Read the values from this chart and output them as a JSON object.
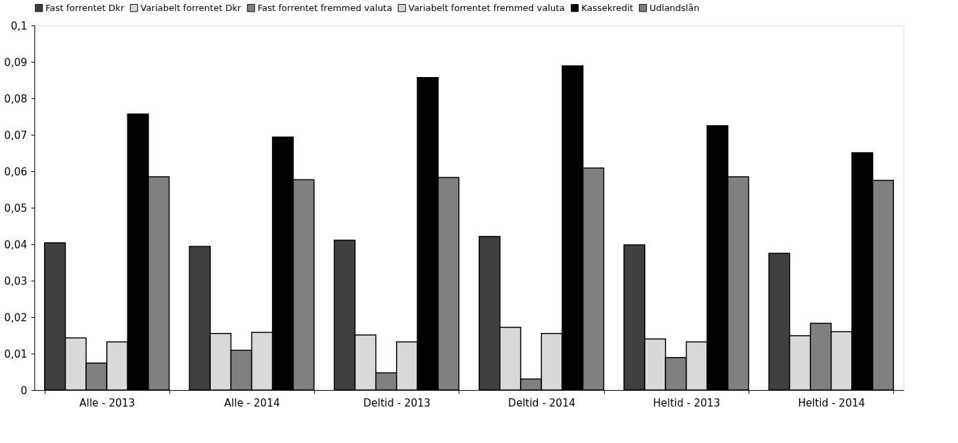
{
  "chart_data": {
    "type": "bar",
    "categories": [
      "Alle - 2013",
      "Alle - 2014",
      "Deltid - 2013",
      "Deltid - 2014",
      "Heltid - 2013",
      "Heltid - 2014"
    ],
    "series": [
      {
        "name": "Fast forrentet Dkr",
        "color": "#404040",
        "values": [
          0.0404,
          0.0394,
          0.0411,
          0.0421,
          0.0398,
          0.0375
        ]
      },
      {
        "name": "Variabelt forrentet Dkr",
        "color": "#d9d9d9",
        "values": [
          0.0143,
          0.0155,
          0.0151,
          0.0172,
          0.014,
          0.0149
        ]
      },
      {
        "name": "Fast forrentet fremmed valuta",
        "color": "#808080",
        "values": [
          0.0074,
          0.0109,
          0.0047,
          0.003,
          0.0089,
          0.0183
        ]
      },
      {
        "name": "Variabelt forrentet fremmed valuta",
        "color": "#d9d9d9",
        "values": [
          0.0132,
          0.0158,
          0.0132,
          0.0155,
          0.0132,
          0.016
        ]
      },
      {
        "name": "Kassekredit",
        "color": "#000000",
        "values": [
          0.0757,
          0.0694,
          0.0857,
          0.0889,
          0.0725,
          0.0651
        ]
      },
      {
        "name": "Udlandslån",
        "color": "#808080",
        "values": [
          0.0585,
          0.0577,
          0.0583,
          0.0609,
          0.0585,
          0.0575
        ]
      }
    ],
    "ylim": [
      0,
      0.1
    ],
    "yticks": [
      0,
      {
        "value": 0.01,
        "label": "0,01"
      },
      {
        "value": 0.02,
        "label": "0,02"
      },
      {
        "value": 0.03,
        "label": "0,03"
      },
      {
        "value": 0.04,
        "label": "0,04"
      },
      {
        "value": 0.05,
        "label": "0,05"
      },
      {
        "value": 0.06,
        "label": "0,06"
      },
      {
        "value": 0.07,
        "label": "0,07"
      },
      {
        "value": 0.08,
        "label": "0,08"
      },
      {
        "value": 0.09,
        "label": "0,09"
      },
      {
        "value": 0.1,
        "label": "0,1"
      }
    ],
    "grid": false,
    "legend": "top"
  }
}
